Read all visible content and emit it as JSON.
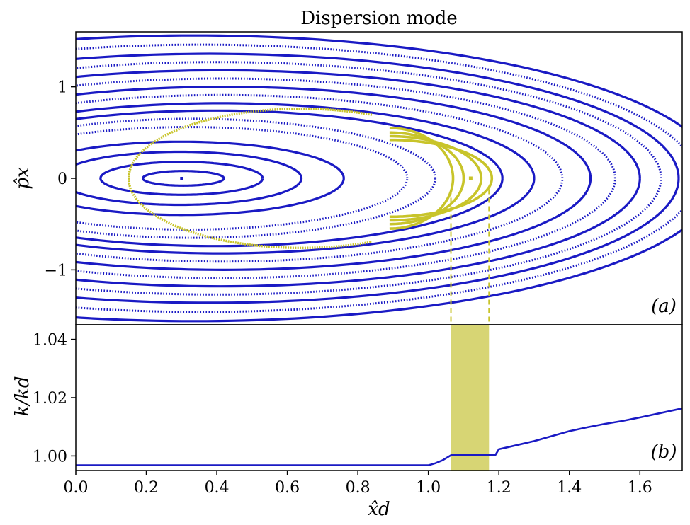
{
  "title": "Dispersion mode",
  "colors": {
    "orbit": "#1a1ac4",
    "island": "#c8c42a",
    "band": "#d7d574",
    "frame": "#000000"
  },
  "chart_data": [
    {
      "type": "scatter",
      "panel_label": "(a)",
      "ylabel": "p̂x",
      "xlabel": "",
      "xlim": [
        0.0,
        1.72
      ],
      "ylim": [
        -1.6,
        1.6
      ],
      "yticks": [
        "1",
        "0",
        "−1"
      ],
      "ytick_values": [
        1,
        0,
        -1
      ],
      "center_point": [
        0.3,
        0.0
      ],
      "blue_orbits": [
        {
          "x_left": 0.19,
          "x_right": 0.42,
          "p_amp": 0.08,
          "dense": true
        },
        {
          "x_left": 0.07,
          "x_right": 0.53,
          "p_amp": 0.18,
          "dense": true
        },
        {
          "x_left": -0.05,
          "x_right": 0.64,
          "p_amp": 0.29,
          "dense": true
        },
        {
          "x_left": -0.16,
          "x_right": 0.76,
          "p_amp": 0.4,
          "dense": true
        },
        {
          "x_left": -0.3,
          "x_right": 0.94,
          "p_amp": 0.56,
          "dense": false
        },
        {
          "x_left": -0.36,
          "x_right": 1.02,
          "p_amp": 0.65,
          "dense": false
        },
        {
          "x_left": -0.42,
          "x_right": 1.21,
          "p_amp": 0.74,
          "dense": true
        },
        {
          "x_left": -0.48,
          "x_right": 1.3,
          "p_amp": 0.82,
          "dense": true
        },
        {
          "x_left": -0.55,
          "x_right": 1.38,
          "p_amp": 0.91,
          "dense": false
        },
        {
          "x_left": -0.62,
          "x_right": 1.46,
          "p_amp": 1.0,
          "dense": true
        },
        {
          "x_left": -0.7,
          "x_right": 1.53,
          "p_amp": 1.09,
          "dense": false
        },
        {
          "x_left": -0.78,
          "x_right": 1.6,
          "p_amp": 1.18,
          "dense": true
        },
        {
          "x_left": -0.86,
          "x_right": 1.66,
          "p_amp": 1.27,
          "dense": false
        },
        {
          "x_left": -0.95,
          "x_right": 1.71,
          "p_amp": 1.36,
          "dense": true
        },
        {
          "x_left": -1.05,
          "x_right": 1.76,
          "p_amp": 1.46,
          "dense": false
        },
        {
          "x_left": -1.15,
          "x_right": 1.82,
          "p_amp": 1.56,
          "dense": true
        }
      ],
      "island": {
        "center": [
          1.12,
          0.0
        ],
        "separatrix": {
          "x_left": 0.15,
          "x_right": 1.13,
          "p_amp": 0.76
        },
        "arcs": [
          {
            "x_left": 0.89,
            "x_right": 1.07,
            "p_amp": 0.55
          },
          {
            "x_left": 0.89,
            "x_right": 1.1,
            "p_amp": 0.5
          },
          {
            "x_left": 0.89,
            "x_right": 1.15,
            "p_amp": 0.46
          },
          {
            "x_left": 0.89,
            "x_right": 1.18,
            "p_amp": 0.42
          }
        ],
        "dashed_x": [
          1.064,
          1.172
        ]
      }
    },
    {
      "type": "line",
      "panel_label": "(b)",
      "ylabel": "k/kd",
      "xlabel": "x̂d",
      "xlim": [
        0.0,
        1.72
      ],
      "ylim": [
        0.995,
        1.045
      ],
      "xticks": [
        "0.0",
        "0.2",
        "0.4",
        "0.6",
        "0.8",
        "1.0",
        "1.2",
        "1.4",
        "1.6"
      ],
      "xtick_values": [
        0.0,
        0.2,
        0.4,
        0.6,
        0.8,
        1.0,
        1.2,
        1.4,
        1.6
      ],
      "yticks": [
        "1.04",
        "1.02",
        "1.00"
      ],
      "ytick_values": [
        1.04,
        1.02,
        1.0
      ],
      "shaded_band": [
        1.064,
        1.172
      ],
      "x": [
        0.0,
        0.3,
        0.6,
        0.9,
        1.0,
        1.02,
        1.04,
        1.065,
        1.1,
        1.15,
        1.19,
        1.2,
        1.25,
        1.3,
        1.35,
        1.4,
        1.45,
        1.5,
        1.55,
        1.6,
        1.65,
        1.72
      ],
      "y": [
        0.9968,
        0.9968,
        0.9968,
        0.9968,
        0.9968,
        0.9975,
        0.9985,
        1.0003,
        1.0003,
        1.0003,
        1.0003,
        1.0023,
        1.0037,
        1.0051,
        1.0068,
        1.0085,
        1.0098,
        1.011,
        1.012,
        1.0132,
        1.0145,
        1.0163
      ]
    }
  ]
}
